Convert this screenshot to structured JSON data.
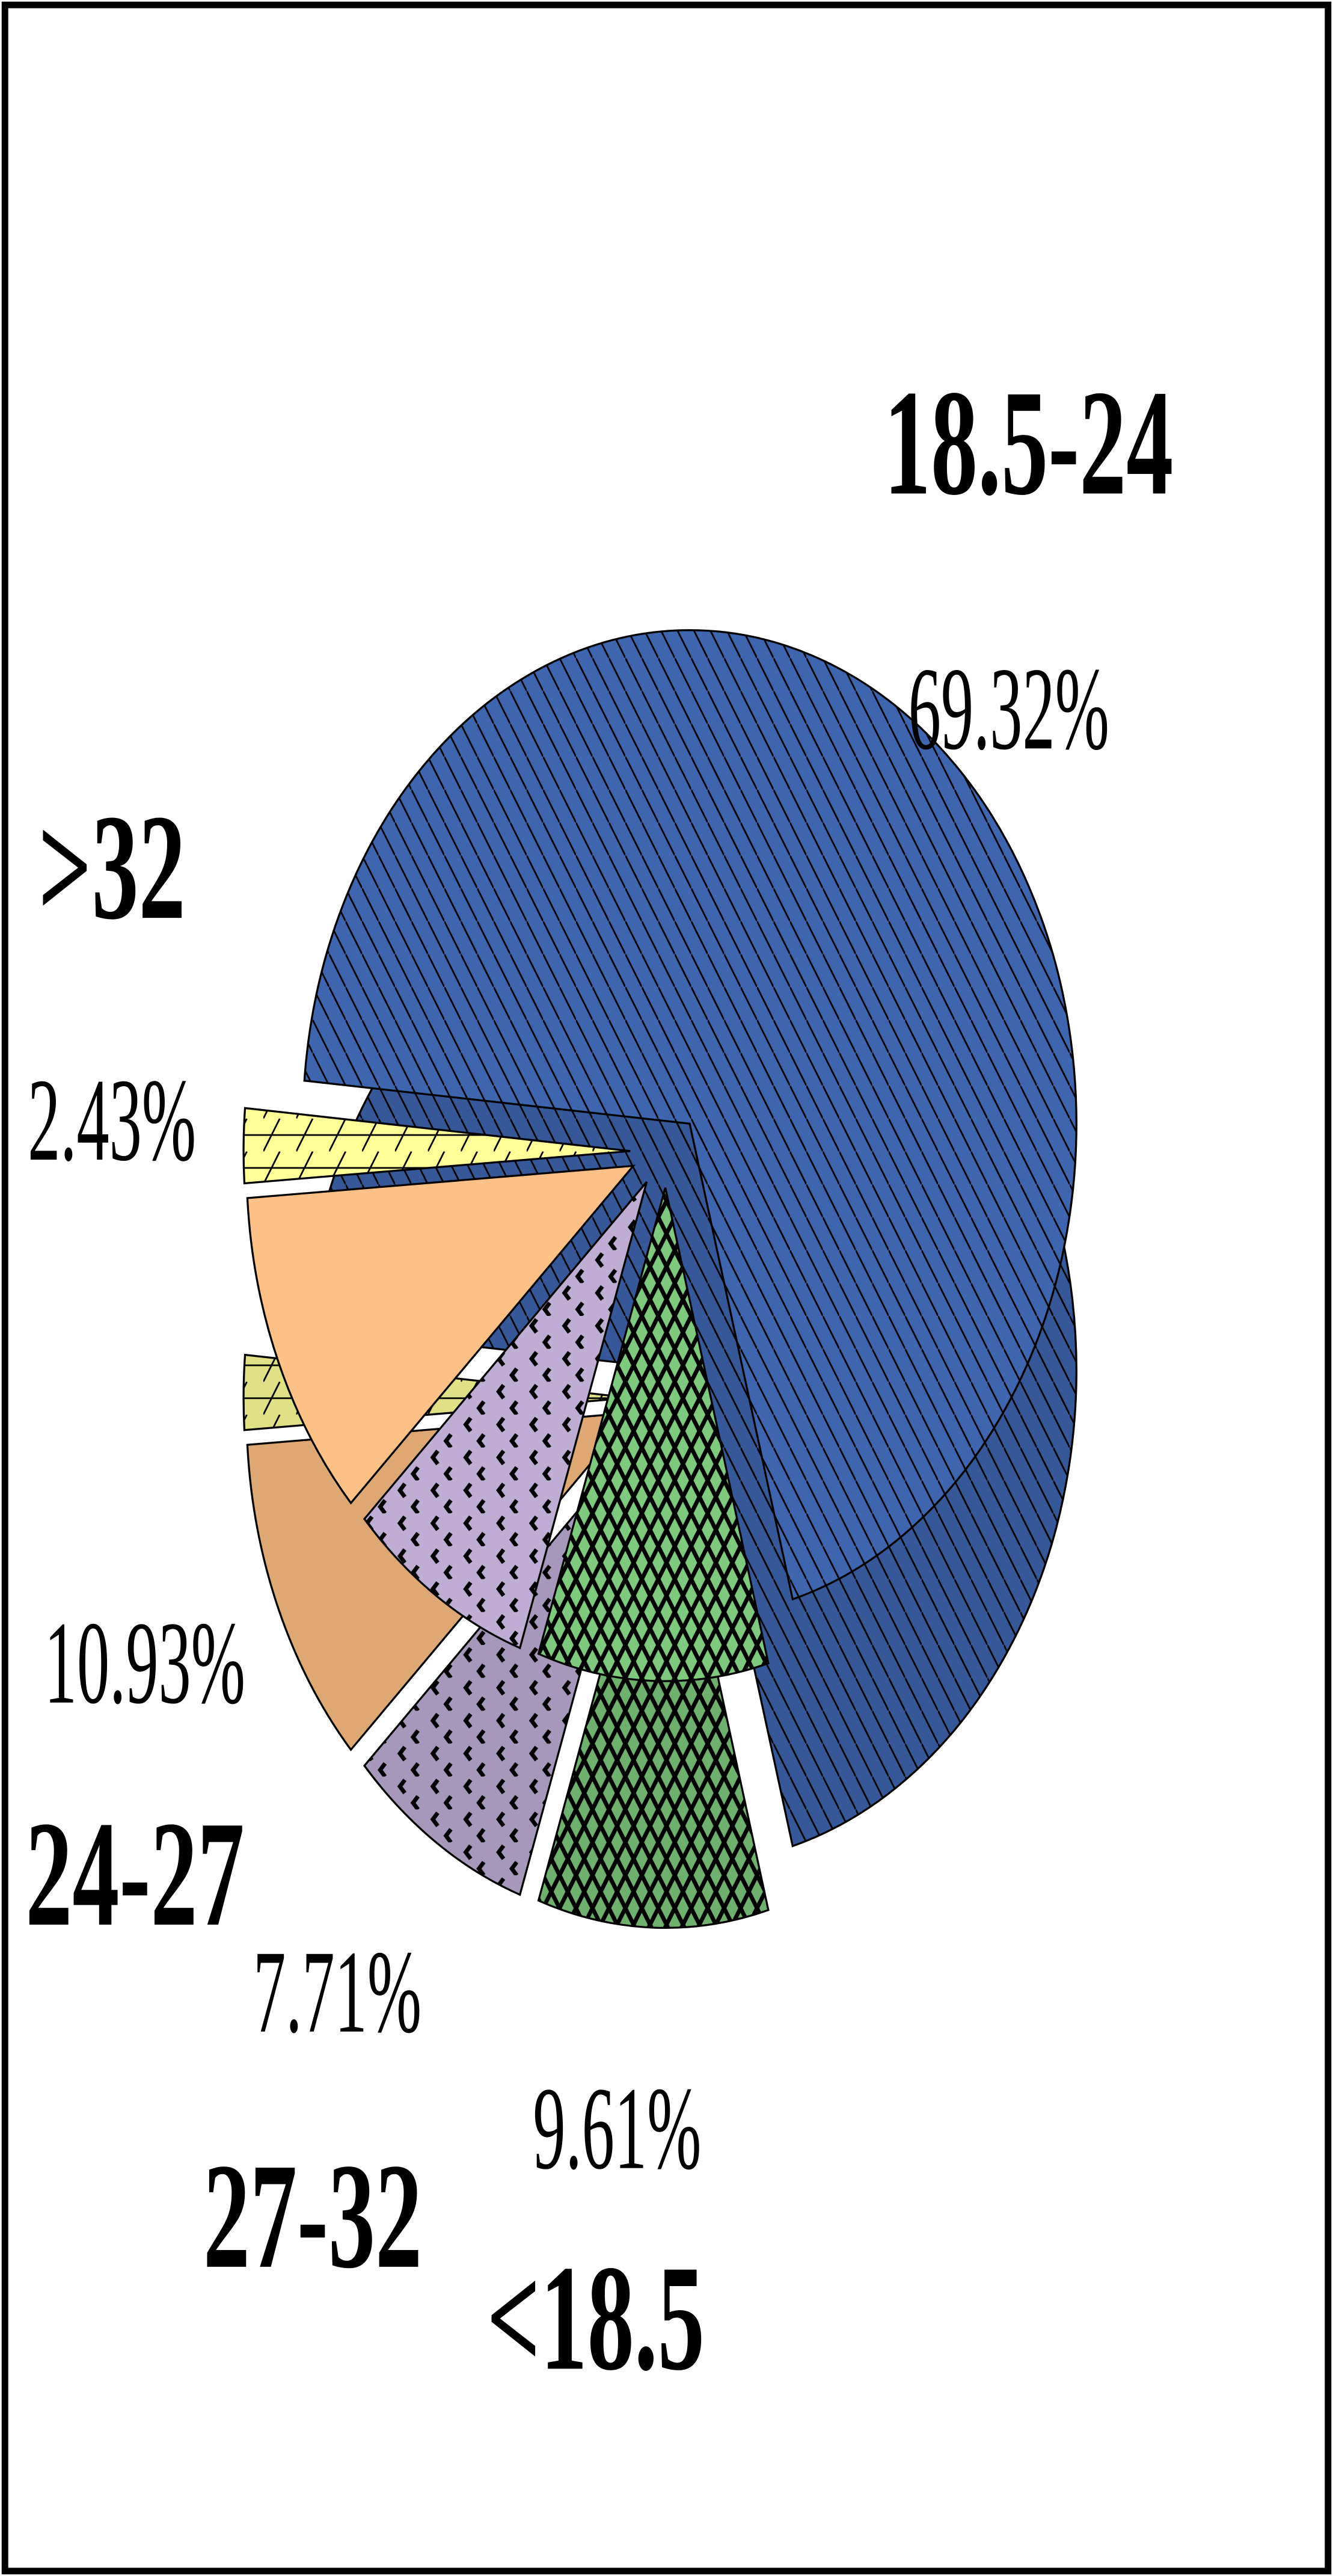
{
  "chart_data": {
    "type": "pie",
    "categories": [
      "18.5-24",
      "<18.5",
      "27-32",
      "24-27",
      ">32"
    ],
    "values": [
      69.32,
      9.61,
      7.71,
      10.93,
      2.43
    ],
    "value_labels": [
      "69.32%",
      "9.61%",
      "7.71%",
      "10.93%",
      "2.43%"
    ],
    "colors": [
      "#3e65ad",
      "#7fc97f",
      "#beaed4",
      "#fdc086",
      "#ffff99"
    ]
  }
}
